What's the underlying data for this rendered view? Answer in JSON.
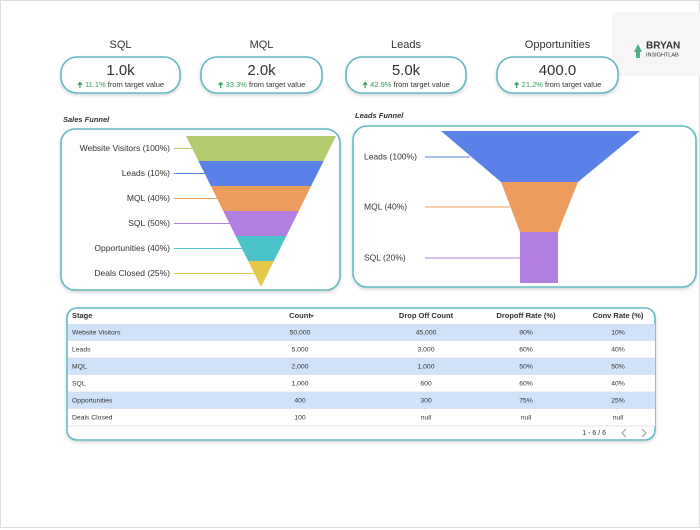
{
  "kpis": [
    {
      "label": "SQL",
      "value": "1.0k",
      "delta": "11.1% from target value"
    },
    {
      "label": "MQL",
      "value": "2.0k",
      "delta": "33.3% from target value"
    },
    {
      "label": "Leads",
      "value": "5.0k",
      "delta": "42.9% from target value"
    },
    {
      "label": "Opportunities",
      "value": "400.0",
      "delta": "21.2% from target value"
    }
  ],
  "logo": {
    "name": "BRYAN",
    "sub": "INSIGHTLAB"
  },
  "sales_funnel": {
    "title": "Sales Funnel",
    "stages": [
      {
        "label": "Website Visitors (100%)",
        "color": "#b4cc6e"
      },
      {
        "label": "Leads (10%)",
        "color": "#5b80e8"
      },
      {
        "label": "MQL (40%)",
        "color": "#ee9c5e"
      },
      {
        "label": "SQL (50%)",
        "color": "#b27fe0"
      },
      {
        "label": "Opportunities (40%)",
        "color": "#4cc3c8"
      },
      {
        "label": "Deals Closed (25%)",
        "color": "#e5c84b"
      }
    ]
  },
  "leads_funnel": {
    "title": "Leads Funnel",
    "stages": [
      {
        "label": "Leads (100%)",
        "color": "#5b80e8"
      },
      {
        "label": "MQL (40%)",
        "color": "#ee9c5e"
      },
      {
        "label": "SQL (20%)",
        "color": "#b27fe0"
      }
    ]
  },
  "table": {
    "columns": [
      "Stage",
      "Count",
      "Drop Off Count",
      "Dropoff Rate (%)",
      "Conv Rate (%)"
    ],
    "rows": [
      [
        "Website Visitors",
        "50,000",
        "45,000",
        "90%",
        "10%"
      ],
      [
        "Leads",
        "5,000",
        "3,000",
        "60%",
        "40%"
      ],
      [
        "MQL",
        "2,000",
        "1,000",
        "50%",
        "50%"
      ],
      [
        "SQL",
        "1,000",
        "600",
        "60%",
        "40%"
      ],
      [
        "Opportunities",
        "400",
        "300",
        "75%",
        "25%"
      ],
      [
        "Deals Closed",
        "100",
        "null",
        "null",
        "null"
      ]
    ],
    "pagination": "1 - 6 / 6"
  }
}
